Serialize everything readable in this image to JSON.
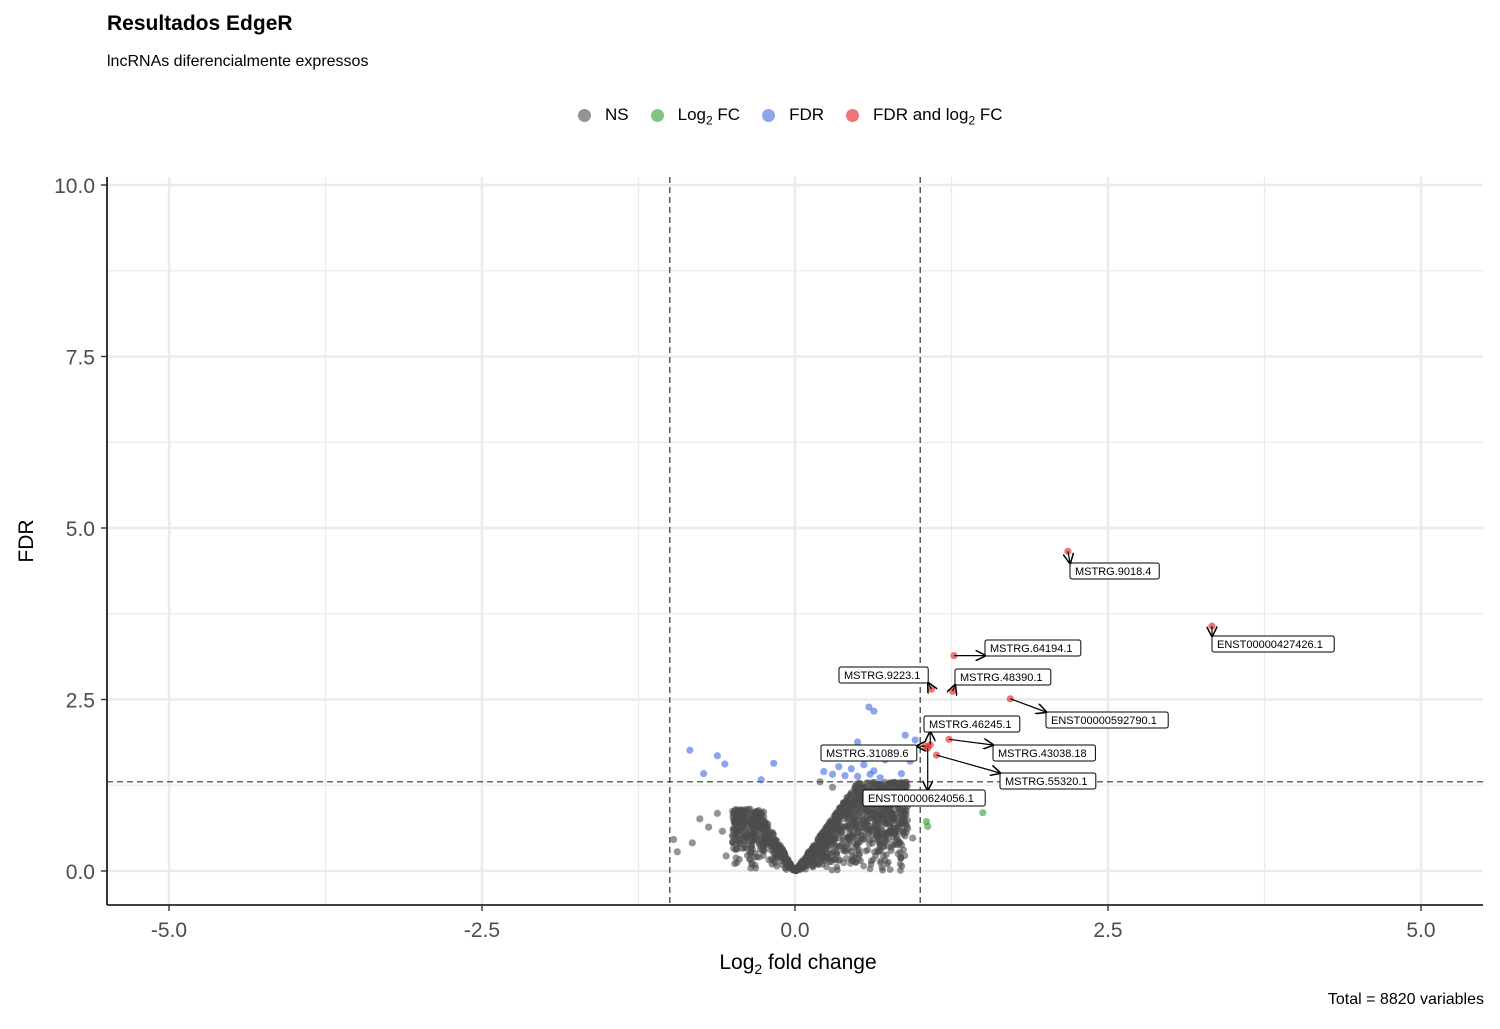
{
  "title": "Resultados EdgeR",
  "subtitle": "lncRNAs diferencialmente expressos",
  "caption": "Total = 8820 variables",
  "legend": [
    {
      "pre": "NS",
      "sub": "",
      "post": "",
      "color": "#4d4d4d"
    },
    {
      "pre": "Log",
      "sub": "2",
      "post": " FC",
      "color": "#2ca02c"
    },
    {
      "pre": "FDR",
      "sub": "",
      "post": "",
      "color": "#4169e1"
    },
    {
      "pre": "FDR and log",
      "sub": "2",
      "post": " FC",
      "color": "#e31a1c"
    }
  ],
  "chart_data": {
    "type": "scatter",
    "title": "Resultados EdgeR",
    "subtitle": "lncRNAs diferencialmente expressos",
    "xlabel_pre": "Log",
    "xlabel_sub": "2",
    "xlabel_post": " fold change",
    "ylabel": "FDR",
    "xlim": [
      -5.5,
      5.5
    ],
    "ylim": [
      -0.2,
      10.1
    ],
    "xticks": [
      -5.0,
      -2.5,
      0.0,
      2.5,
      5.0
    ],
    "xtick_labels": [
      "-5.0",
      "-2.5",
      "0.0",
      "2.5",
      "5.0"
    ],
    "yticks": [
      0.0,
      2.5,
      5.0,
      7.5,
      10.0
    ],
    "ytick_labels": [
      "0.0",
      "2.5",
      "5.0",
      "7.5",
      "10.0"
    ],
    "grid": true,
    "legend_position": "top",
    "fc_cutoffs": [
      -1,
      1
    ],
    "fdr_cutoff": 1.3,
    "colors": {
      "NS": "#4d4d4d",
      "Log2 FC": "#2ca02c",
      "FDR": "#4169e1",
      "FDR and log2 FC": "#e31a1c"
    },
    "series": [
      {
        "name": "NS",
        "color": "#4d4d4d",
        "points": [
          [
            -0.97,
            0.46
          ],
          [
            -0.94,
            0.28
          ],
          [
            -0.82,
            0.41
          ],
          [
            -0.76,
            0.76
          ],
          [
            -0.69,
            0.64
          ],
          [
            -0.62,
            0.84
          ],
          [
            -0.58,
            0.58
          ],
          [
            -0.55,
            0.22
          ],
          [
            -0.5,
            0.52
          ],
          [
            -0.46,
            0.88
          ],
          [
            -0.42,
            0.33
          ],
          [
            -0.36,
            0.9
          ],
          [
            -0.3,
            0.68
          ],
          [
            -0.25,
            0.86
          ],
          [
            -0.2,
            0.43
          ],
          [
            0.2,
            1.3
          ],
          [
            0.3,
            1.22
          ],
          [
            0.45,
            1.12
          ],
          [
            0.6,
            1.0
          ],
          [
            0.72,
            0.92
          ],
          [
            0.8,
            0.82
          ],
          [
            0.86,
            0.7
          ],
          [
            0.9,
            0.62
          ],
          [
            0.94,
            0.48
          ],
          [
            0.85,
            0.38
          ]
        ]
      },
      {
        "name": "Log2 FC",
        "color": "#2ca02c",
        "points": [
          [
            1.05,
            0.72
          ],
          [
            1.06,
            0.65
          ],
          [
            1.5,
            0.85
          ]
        ]
      },
      {
        "name": "FDR",
        "color": "#4169e1",
        "points": [
          [
            -0.84,
            1.76
          ],
          [
            -0.73,
            1.42
          ],
          [
            -0.62,
            1.68
          ],
          [
            -0.56,
            1.56
          ],
          [
            -0.27,
            1.33
          ],
          [
            -0.17,
            1.57
          ],
          [
            0.23,
            1.45
          ],
          [
            0.3,
            1.41
          ],
          [
            0.35,
            1.52
          ],
          [
            0.4,
            1.39
          ],
          [
            0.45,
            1.49
          ],
          [
            0.5,
            1.38
          ],
          [
            0.55,
            1.55
          ],
          [
            0.6,
            1.41
          ],
          [
            0.63,
            1.46
          ],
          [
            0.68,
            1.36
          ],
          [
            0.72,
            1.62
          ],
          [
            0.59,
            2.39
          ],
          [
            0.63,
            2.33
          ],
          [
            0.88,
            1.98
          ],
          [
            0.96,
            1.91
          ],
          [
            0.92,
            1.6
          ],
          [
            0.85,
            1.42
          ],
          [
            0.36,
            1.68
          ],
          [
            0.42,
            1.76
          ],
          [
            0.5,
            1.88
          ]
        ]
      },
      {
        "name": "FDR and log2 FC",
        "color": "#e31a1c",
        "points": [
          [
            2.18,
            4.66
          ],
          [
            3.33,
            3.57
          ],
          [
            1.27,
            3.14
          ],
          [
            1.09,
            2.65
          ],
          [
            1.26,
            2.62
          ],
          [
            1.72,
            2.51
          ],
          [
            1.23,
            1.92
          ],
          [
            1.08,
            1.84
          ],
          [
            1.06,
            1.79
          ],
          [
            1.13,
            1.69
          ],
          [
            1.04,
            1.82
          ]
        ]
      }
    ],
    "annotations": [
      {
        "label": "MSTRG.9018.4",
        "x": 2.18,
        "y": 4.66
      },
      {
        "label": "ENST00000427426.1",
        "x": 3.33,
        "y": 3.57
      },
      {
        "label": "MSTRG.64194.1",
        "x": 1.27,
        "y": 3.14
      },
      {
        "label": "MSTRG.9223.1",
        "x": 1.09,
        "y": 2.65
      },
      {
        "label": "MSTRG.48390.1",
        "x": 1.26,
        "y": 2.62
      },
      {
        "label": "ENST00000592790.1",
        "x": 1.72,
        "y": 2.51
      },
      {
        "label": "MSTRG.46245.1",
        "x": 1.08,
        "y": 1.84
      },
      {
        "label": "MSTRG.43038.18",
        "x": 1.23,
        "y": 1.92
      },
      {
        "label": "MSTRG.31089.6",
        "x": 1.04,
        "y": 1.82
      },
      {
        "label": "MSTRG.55320.1",
        "x": 1.13,
        "y": 1.69
      },
      {
        "label": "ENST00000624056.1",
        "x": 1.06,
        "y": 1.79
      }
    ]
  }
}
